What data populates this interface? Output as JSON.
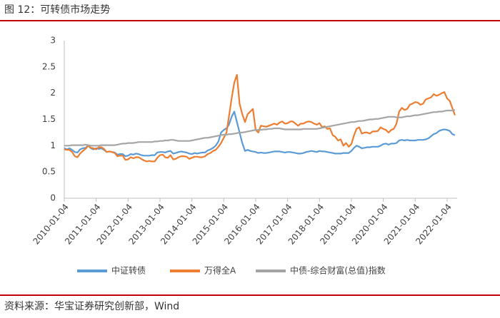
{
  "chart_data": {
    "type": "line",
    "title": "图 12：可转债市场走势",
    "source": "资料来源：华宝证券研究创新部，Wind",
    "x": [
      "2010-01-04",
      "2010-02-04",
      "2010-03-04",
      "2010-04-04",
      "2010-05-04",
      "2010-06-04",
      "2010-07-04",
      "2010-08-04",
      "2010-09-04",
      "2010-10-04",
      "2010-11-04",
      "2010-12-04",
      "2011-01-04",
      "2011-02-04",
      "2011-03-04",
      "2011-04-04",
      "2011-05-04",
      "2011-06-04",
      "2011-07-04",
      "2011-08-04",
      "2011-09-04",
      "2011-10-04",
      "2011-11-04",
      "2011-12-04",
      "2012-01-04",
      "2012-02-04",
      "2012-03-04",
      "2012-04-04",
      "2012-05-04",
      "2012-06-04",
      "2012-07-04",
      "2012-08-04",
      "2012-09-04",
      "2012-10-04",
      "2012-11-04",
      "2012-12-04",
      "2013-01-04",
      "2013-02-04",
      "2013-03-04",
      "2013-04-04",
      "2013-05-04",
      "2013-06-04",
      "2013-07-04",
      "2013-08-04",
      "2013-09-04",
      "2013-10-04",
      "2013-11-04",
      "2013-12-04",
      "2014-01-04",
      "2014-02-04",
      "2014-03-04",
      "2014-04-04",
      "2014-05-04",
      "2014-06-04",
      "2014-07-04",
      "2014-08-04",
      "2014-09-04",
      "2014-10-04",
      "2014-11-04",
      "2014-12-04",
      "2015-01-04",
      "2015-02-04",
      "2015-03-04",
      "2015-04-04",
      "2015-05-04",
      "2015-06-04",
      "2015-07-04",
      "2015-08-04",
      "2015-09-04",
      "2015-10-04",
      "2015-11-04",
      "2015-12-04",
      "2016-01-04",
      "2016-02-04",
      "2016-03-04",
      "2016-04-04",
      "2016-05-04",
      "2016-06-04",
      "2016-07-04",
      "2016-08-04",
      "2016-09-04",
      "2016-10-04",
      "2016-11-04",
      "2016-12-04",
      "2017-01-04",
      "2017-02-04",
      "2017-03-04",
      "2017-04-04",
      "2017-05-04",
      "2017-06-04",
      "2017-07-04",
      "2017-08-04",
      "2017-09-04",
      "2017-10-04",
      "2017-11-04",
      "2017-12-04",
      "2018-01-04",
      "2018-02-04",
      "2018-03-04",
      "2018-04-04",
      "2018-05-04",
      "2018-06-04",
      "2018-07-04",
      "2018-08-04",
      "2018-09-04",
      "2018-10-04",
      "2018-11-04",
      "2018-12-04",
      "2019-01-04",
      "2019-02-04",
      "2019-03-04",
      "2019-04-04",
      "2019-05-04",
      "2019-06-04",
      "2019-07-04",
      "2019-08-04",
      "2019-09-04",
      "2019-10-04",
      "2019-11-04",
      "2019-12-04",
      "2020-01-04",
      "2020-02-04",
      "2020-03-04",
      "2020-04-04",
      "2020-05-04",
      "2020-06-04",
      "2020-07-04",
      "2020-08-04",
      "2020-09-04",
      "2020-10-04",
      "2020-11-04",
      "2020-12-04",
      "2021-01-04",
      "2021-02-04",
      "2021-03-04",
      "2021-04-04",
      "2021-05-04",
      "2021-06-04",
      "2021-07-04",
      "2021-08-04",
      "2021-09-04",
      "2021-10-04",
      "2021-11-04",
      "2021-12-04",
      "2022-01-04",
      "2022-02-04",
      "2022-03-04",
      "2022-04-04"
    ],
    "series": [
      {
        "name": "中证转债",
        "color": "#5b9bd5",
        "values": [
          0.95,
          0.93,
          0.95,
          0.92,
          0.88,
          0.87,
          0.93,
          0.95,
          0.96,
          1.0,
          0.95,
          0.93,
          0.95,
          0.94,
          0.95,
          0.92,
          0.88,
          0.89,
          0.88,
          0.87,
          0.83,
          0.84,
          0.84,
          0.8,
          0.81,
          0.84,
          0.83,
          0.85,
          0.84,
          0.82,
          0.81,
          0.81,
          0.81,
          0.82,
          0.82,
          0.87,
          0.88,
          0.88,
          0.87,
          0.89,
          0.9,
          0.85,
          0.86,
          0.88,
          0.89,
          0.88,
          0.87,
          0.85,
          0.84,
          0.86,
          0.85,
          0.86,
          0.87,
          0.87,
          0.91,
          0.93,
          0.96,
          1.0,
          1.08,
          1.25,
          1.3,
          1.33,
          1.4,
          1.55,
          1.65,
          1.45,
          1.25,
          1.05,
          0.9,
          0.92,
          0.9,
          0.89,
          0.88,
          0.86,
          0.87,
          0.86,
          0.86,
          0.87,
          0.88,
          0.89,
          0.89,
          0.89,
          0.88,
          0.87,
          0.88,
          0.88,
          0.87,
          0.86,
          0.85,
          0.85,
          0.86,
          0.88,
          0.89,
          0.9,
          0.89,
          0.88,
          0.9,
          0.89,
          0.89,
          0.88,
          0.87,
          0.86,
          0.85,
          0.85,
          0.85,
          0.86,
          0.86,
          0.86,
          0.9,
          0.96,
          1.0,
          0.98,
          0.95,
          0.96,
          0.97,
          0.97,
          0.98,
          0.98,
          0.98,
          1.0,
          1.03,
          1.04,
          1.02,
          1.04,
          1.04,
          1.05,
          1.1,
          1.11,
          1.1,
          1.11,
          1.1,
          1.1,
          1.1,
          1.11,
          1.11,
          1.11,
          1.12,
          1.14,
          1.18,
          1.22,
          1.24,
          1.28,
          1.3,
          1.31,
          1.3,
          1.28,
          1.22,
          1.2
        ]
      },
      {
        "name": "万得全A",
        "color": "#ed7d31",
        "values": [
          0.93,
          0.92,
          0.92,
          0.88,
          0.8,
          0.78,
          0.85,
          0.9,
          0.94,
          1.0,
          0.96,
          0.95,
          0.93,
          0.97,
          0.97,
          0.94,
          0.88,
          0.89,
          0.88,
          0.86,
          0.8,
          0.81,
          0.81,
          0.73,
          0.74,
          0.78,
          0.76,
          0.78,
          0.78,
          0.75,
          0.72,
          0.7,
          0.71,
          0.7,
          0.7,
          0.77,
          0.82,
          0.83,
          0.78,
          0.77,
          0.82,
          0.74,
          0.75,
          0.78,
          0.8,
          0.8,
          0.79,
          0.75,
          0.77,
          0.79,
          0.79,
          0.78,
          0.78,
          0.8,
          0.84,
          0.86,
          0.9,
          0.92,
          0.98,
          1.05,
          1.15,
          1.25,
          1.55,
          1.9,
          2.2,
          2.35,
          1.8,
          1.6,
          1.45,
          1.6,
          1.65,
          1.7,
          1.3,
          1.25,
          1.38,
          1.37,
          1.36,
          1.38,
          1.4,
          1.42,
          1.4,
          1.44,
          1.46,
          1.42,
          1.43,
          1.46,
          1.46,
          1.42,
          1.38,
          1.42,
          1.42,
          1.45,
          1.46,
          1.45,
          1.42,
          1.4,
          1.43,
          1.35,
          1.37,
          1.32,
          1.33,
          1.2,
          1.17,
          1.1,
          1.12,
          1.0,
          1.05,
          0.98,
          1.03,
          1.2,
          1.32,
          1.35,
          1.23,
          1.25,
          1.25,
          1.23,
          1.27,
          1.27,
          1.28,
          1.35,
          1.32,
          1.3,
          1.25,
          1.3,
          1.32,
          1.42,
          1.65,
          1.72,
          1.68,
          1.7,
          1.78,
          1.8,
          1.83,
          1.82,
          1.78,
          1.8,
          1.88,
          1.9,
          1.92,
          1.98,
          1.95,
          1.97,
          2.0,
          2.02,
          1.9,
          1.85,
          1.72,
          1.58
        ]
      },
      {
        "name": "中债-综合财富(总值)指数",
        "color": "#a5a5a5",
        "values": [
          1.0,
          1.0,
          1.0,
          1.01,
          1.01,
          1.01,
          1.01,
          1.01,
          1.02,
          1.01,
          1.0,
          1.0,
          1.0,
          1.0,
          1.01,
          1.01,
          1.01,
          1.01,
          1.01,
          1.01,
          1.02,
          1.03,
          1.04,
          1.04,
          1.05,
          1.05,
          1.05,
          1.06,
          1.07,
          1.07,
          1.07,
          1.07,
          1.07,
          1.07,
          1.08,
          1.08,
          1.09,
          1.09,
          1.1,
          1.1,
          1.11,
          1.11,
          1.1,
          1.09,
          1.09,
          1.09,
          1.09,
          1.09,
          1.1,
          1.11,
          1.12,
          1.13,
          1.14,
          1.15,
          1.15,
          1.16,
          1.17,
          1.18,
          1.19,
          1.2,
          1.21,
          1.21,
          1.22,
          1.22,
          1.23,
          1.24,
          1.25,
          1.25,
          1.26,
          1.27,
          1.28,
          1.29,
          1.3,
          1.3,
          1.3,
          1.31,
          1.31,
          1.32,
          1.32,
          1.33,
          1.33,
          1.33,
          1.32,
          1.31,
          1.31,
          1.31,
          1.31,
          1.31,
          1.31,
          1.31,
          1.32,
          1.32,
          1.32,
          1.32,
          1.32,
          1.32,
          1.33,
          1.34,
          1.35,
          1.36,
          1.37,
          1.38,
          1.39,
          1.4,
          1.41,
          1.42,
          1.43,
          1.44,
          1.45,
          1.45,
          1.46,
          1.47,
          1.47,
          1.48,
          1.49,
          1.5,
          1.5,
          1.51,
          1.51,
          1.52,
          1.53,
          1.54,
          1.55,
          1.55,
          1.55,
          1.54,
          1.54,
          1.54,
          1.55,
          1.56,
          1.56,
          1.57,
          1.58,
          1.58,
          1.59,
          1.6,
          1.61,
          1.62,
          1.63,
          1.64,
          1.64,
          1.65,
          1.65,
          1.66,
          1.67,
          1.67,
          1.67,
          1.68
        ]
      }
    ],
    "xlim": [
      "2010-01-04",
      "2022-04-29"
    ],
    "xticks": [
      "2010-01-04",
      "2011-01-04",
      "2012-01-04",
      "2013-01-04",
      "2014-01-04",
      "2015-01-04",
      "2016-01-04",
      "2017-01-04",
      "2018-01-04",
      "2019-01-04",
      "2020-01-04",
      "2021-01-04",
      "2022-01-04"
    ],
    "ylim": [
      0,
      3
    ],
    "yticks": [
      0,
      0.5,
      1,
      1.5,
      2,
      2.5,
      3
    ],
    "grid": false,
    "legend": "bottom"
  }
}
